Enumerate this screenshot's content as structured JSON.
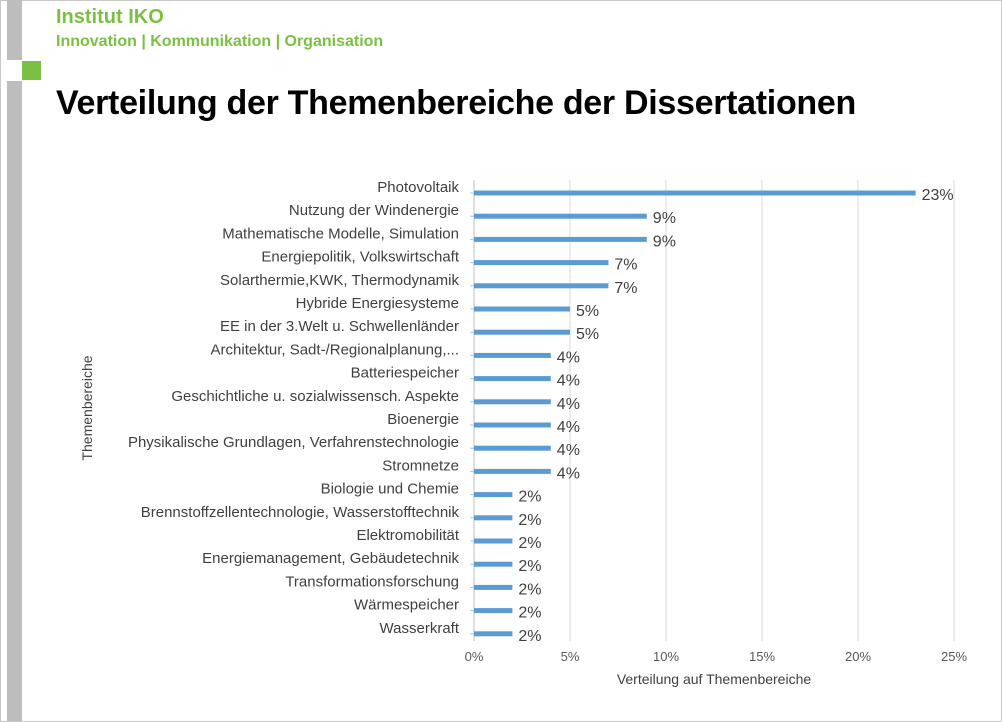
{
  "header": {
    "brand": "Institut IKO",
    "tagline": "Innovation | Kommunikation | Organisation",
    "title": "Verteilung der Themenbereiche der Dissertationen"
  },
  "colors": {
    "accent_green": "#7ac143",
    "bar": "#5b9bd5",
    "sidebar_gray": "#bdbdbd"
  },
  "chart_data": {
    "type": "bar",
    "orientation": "horizontal",
    "categories": [
      "Photovoltaik",
      "Nutzung der Windenergie",
      "Mathematische Modelle, Simulation",
      "Energiepolitik, Volkswirtschaft",
      "Solarthermie,KWK, Thermodynamik",
      "Hybride Energiesysteme",
      "EE in der 3.Welt u. Schwellenländer",
      "Architektur, Sadt-/Regionalplanung,...",
      "Batteriespeicher",
      "Geschichtliche u. sozialwissensch. Aspekte",
      "Bioenergie",
      "Physikalische Grundlagen, Verfahrenstechnologie",
      "Stromnetze",
      "Biologie und Chemie",
      "Brennstoffzellentechnologie, Wasserstofftechnik",
      "Elektromobilität",
      "Energiemanagement, Gebäudetechnik",
      "Transformationsforschung",
      "Wärmespeicher",
      "Wasserkraft"
    ],
    "values": [
      23,
      9,
      9,
      7,
      7,
      5,
      5,
      4,
      4,
      4,
      4,
      4,
      4,
      2,
      2,
      2,
      2,
      2,
      2,
      2
    ],
    "value_labels": [
      "23%",
      "9%",
      "9%",
      "7%",
      "7%",
      "5%",
      "5%",
      "4%",
      "4%",
      "4%",
      "4%",
      "4%",
      "4%",
      "2%",
      "2%",
      "2%",
      "2%",
      "2%",
      "2%",
      "2%"
    ],
    "xticks": [
      "0%",
      "5%",
      "10%",
      "15%",
      "20%",
      "25%"
    ],
    "xlim": [
      0,
      25
    ],
    "xlabel": "Verteilung auf Themenbereiche",
    "ylabel": "Themenbereiche",
    "grid": "vertical"
  }
}
